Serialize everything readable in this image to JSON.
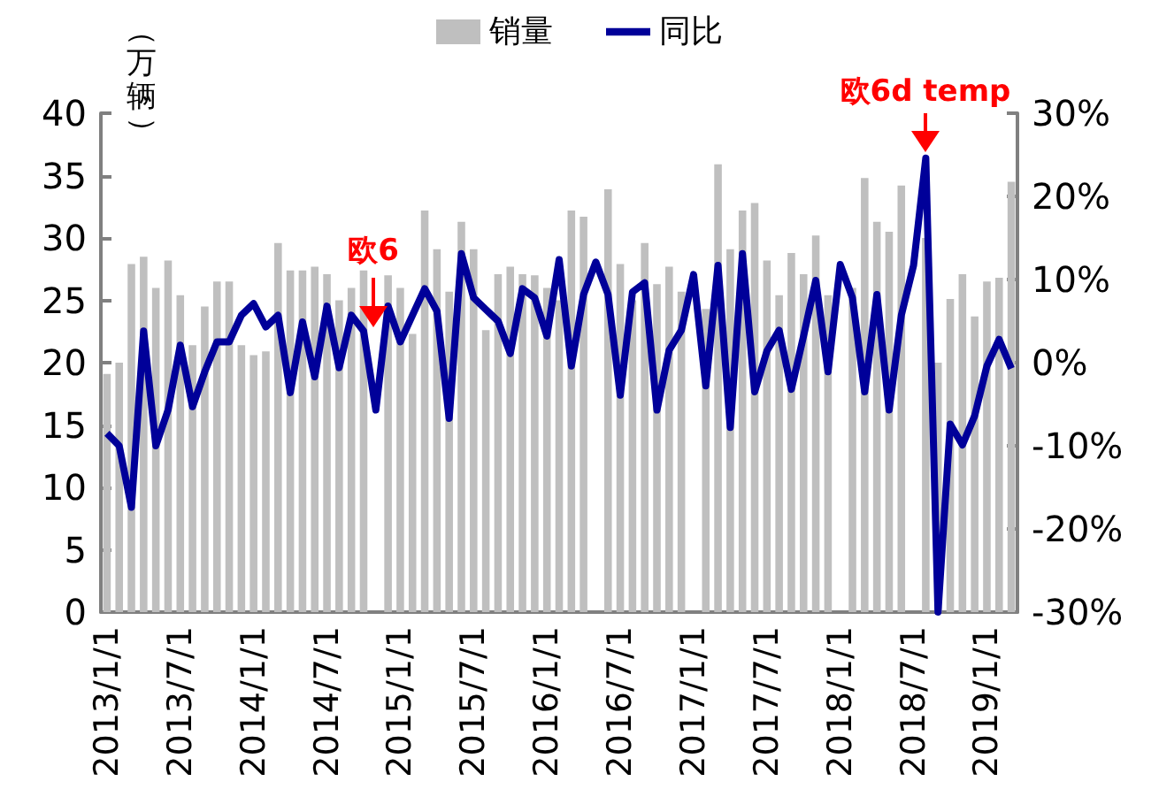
{
  "chart_data": {
    "type": "bar",
    "ylabel": "（万辆）",
    "annotations": [
      "欧6",
      "欧6d temp"
    ],
    "categories": [
      "2013/1/1",
      null,
      null,
      null,
      null,
      null,
      "2013/7/1",
      null,
      null,
      null,
      null,
      null,
      "2014/1/1",
      null,
      null,
      null,
      null,
      null,
      "2014/7/1",
      null,
      null,
      null,
      null,
      null,
      "2015/1/1",
      null,
      null,
      null,
      null,
      null,
      "2015/7/1",
      null,
      null,
      null,
      null,
      null,
      "2016/1/1",
      null,
      null,
      null,
      null,
      null,
      "2016/7/1",
      null,
      null,
      null,
      null,
      null,
      "2017/1/1",
      null,
      null,
      null,
      null,
      null,
      "2017/7/1",
      null,
      null,
      null,
      null,
      null,
      "2018/1/1",
      null,
      null,
      null,
      null,
      null,
      "2018/7/1",
      null,
      null,
      null,
      null,
      null,
      "2019/1/1",
      null,
      null
    ],
    "series": [
      {
        "name": "销量",
        "color": "#bfbfbf",
        "values": [
          19.1,
          20.0,
          27.9,
          28.5,
          26.0,
          28.2,
          25.4,
          21.4,
          24.5,
          26.5,
          26.5,
          21.4,
          20.6,
          20.9,
          29.6,
          27.4,
          27.4,
          27.7,
          27.1,
          25.0,
          26.0,
          27.4,
          null,
          27.0,
          26.0,
          22.3,
          32.2,
          29.1,
          25.7,
          31.3,
          29.1,
          22.6,
          27.1,
          27.7,
          27.1,
          27.0,
          26.0,
          25.0,
          32.2,
          31.7,
          null,
          33.9,
          27.9,
          25.0,
          29.6,
          26.3,
          27.7,
          25.7,
          null,
          24.3,
          35.9,
          29.1,
          32.2,
          32.8,
          28.2,
          25.4,
          28.8,
          27.1,
          30.2,
          25.4,
          null,
          26.0,
          34.8,
          31.3,
          30.5,
          34.2,
          null,
          30.0,
          20.0,
          25.1,
          27.1,
          23.7,
          26.5,
          26.8,
          34.5
        ]
      },
      {
        "name": "同比",
        "type": "line",
        "axis": "y2",
        "color": "#000099",
        "values": [
          -8.5,
          -10,
          -17.4,
          3.8,
          -10,
          -5.7,
          2.1,
          -5.3,
          -1.1,
          2.5,
          2.5,
          5.7,
          7.1,
          4.3,
          5.7,
          -3.6,
          4.9,
          -1.7,
          6.8,
          -0.6,
          5.7,
          3.8,
          -5.7,
          6.8,
          2.5,
          5.7,
          8.9,
          6.2,
          -6.7,
          13.1,
          7.8,
          6.4,
          5.0,
          1.1,
          8.9,
          7.8,
          3.2,
          12.4,
          -0.4,
          8.2,
          12.1,
          8.2,
          -3.9,
          8.5,
          9.6,
          -5.7,
          1.5,
          3.9,
          10.6,
          -2.8,
          11.7,
          -7.8,
          13.1,
          -3.5,
          1.4,
          3.9,
          -3.2,
          3.2,
          9.9,
          -1.1,
          11.8,
          7.8,
          -3.5,
          8.2,
          -5.7,
          5.7,
          11.7,
          24.6,
          -30,
          -7.4,
          -9.9,
          -6.4,
          -0.4,
          2.8,
          -0.7
        ]
      }
    ],
    "ylim": [
      0,
      40
    ],
    "yticks": [
      0,
      5,
      10,
      15,
      20,
      25,
      30,
      35,
      40
    ],
    "y2lim": [
      -30,
      30
    ],
    "y2ticks": [
      {
        "value": -30,
        "label": "-30%"
      },
      {
        "value": -20,
        "label": "-20%"
      },
      {
        "value": -10,
        "label": "-10%"
      },
      {
        "value": 0,
        "label": "0%"
      },
      {
        "value": 10,
        "label": "10%"
      },
      {
        "value": 20,
        "label": "20%"
      },
      {
        "value": 30,
        "label": "30%"
      }
    ],
    "legend": "top",
    "grid": false,
    "marker": "none",
    "line_style": "solid"
  }
}
